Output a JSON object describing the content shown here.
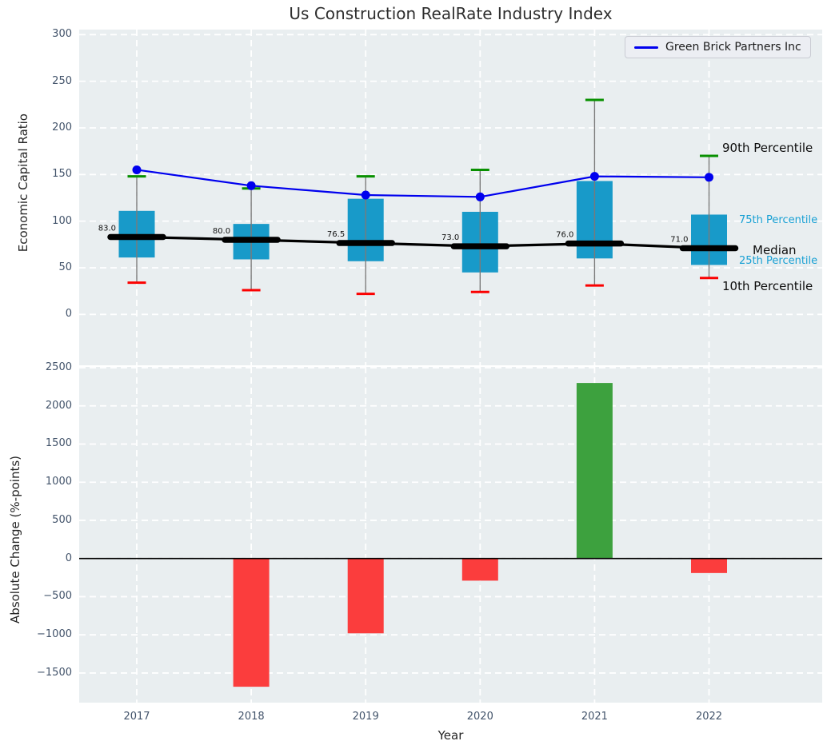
{
  "title": "Us Construction RealRate Industry Index",
  "legend": {
    "label": "Green Brick Partners Inc"
  },
  "annotations": {
    "p90": "90th Percentile",
    "p75": "75th Percentile",
    "median": "Median",
    "p25": "25th Percentile",
    "p10": "10th Percentile"
  },
  "colors": {
    "company_line": "#0000ee",
    "box_fill": "#189ac9",
    "percentile_text": "#18a0d4",
    "cap_90": "#089000",
    "cap_10": "#fb0000",
    "whisker": "#7a7a7a",
    "median_line": "#000000",
    "positive_bar": "#3da13e",
    "negative_bar": "#fb3d3d",
    "axes_bg": "#e9eef0"
  },
  "chart_data": [
    {
      "type": "boxplot_line",
      "title": "Us Construction RealRate Industry Index",
      "ylabel": "Economic Capital Ratio",
      "yticks": [
        300,
        250,
        200,
        150,
        100,
        50,
        0
      ],
      "ylim": [
        -55,
        306
      ],
      "grid": true,
      "legend_position": "upper right",
      "categories": [
        "2017",
        "2018",
        "2019",
        "2020",
        "2021",
        "2022"
      ],
      "company": {
        "name": "Green Brick Partners Inc",
        "values": [
          155,
          138,
          128,
          126,
          148,
          147
        ]
      },
      "median": {
        "values": [
          83,
          80,
          76.5,
          73,
          76,
          71
        ],
        "labels": [
          "83.0",
          "80.0",
          "76.5",
          "73.0",
          "76.0",
          "71.0"
        ]
      },
      "p75": [
        111,
        97,
        124,
        110,
        143,
        107
      ],
      "p25": [
        61,
        59,
        57,
        45,
        60,
        53
      ],
      "p90": [
        148,
        135,
        148,
        155,
        230,
        170
      ],
      "p10": [
        34,
        26,
        22,
        24,
        31,
        39
      ]
    },
    {
      "type": "bar",
      "xlabel": "Year",
      "ylabel": "Absolute Change (%-points)",
      "yticks": [
        2500,
        2000,
        1500,
        1000,
        500,
        0,
        -500,
        -1000,
        -1500
      ],
      "ytick_labels": [
        "2500",
        "2000",
        "1500",
        "1000",
        "500",
        "0",
        "−500",
        "−1000",
        "−1500"
      ],
      "ylim": [
        -1890,
        2510
      ],
      "grid": true,
      "zero_line": true,
      "categories": [
        "2017",
        "2018",
        "2019",
        "2020",
        "2021",
        "2022"
      ],
      "values": [
        0,
        -1680,
        -980,
        -290,
        2300,
        -190
      ]
    }
  ]
}
